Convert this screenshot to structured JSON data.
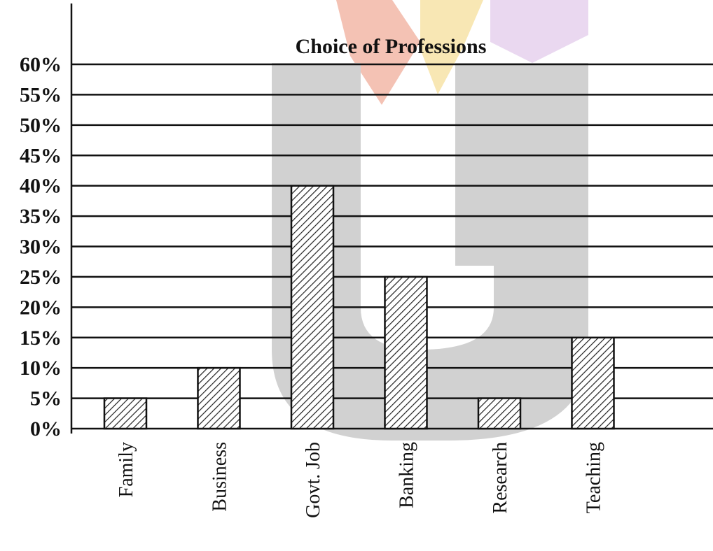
{
  "chart_data": {
    "type": "bar",
    "title": "Choice of Professions",
    "xlabel": "",
    "ylabel": "",
    "categories": [
      "Family",
      "Business",
      "Govt. Job",
      "Banking",
      "Research",
      "Teaching"
    ],
    "values": [
      5,
      10,
      40,
      25,
      5,
      15
    ],
    "ylim": [
      0,
      60
    ],
    "yticks": [
      "0%",
      "5%",
      "10%",
      "15%",
      "20%",
      "25%",
      "30%",
      "35%",
      "40%",
      "45%",
      "50%",
      "55%",
      "60%"
    ],
    "grid": true,
    "bar_fill": "hatched",
    "colors": {
      "bar_hatch": "#222222",
      "bar_background": "#ffffff",
      "grid": "#111111"
    }
  },
  "watermark": {
    "colors": [
      "#c9c9c9",
      "#f3b8a8",
      "#f7e3a8",
      "#e7d2ee"
    ]
  }
}
